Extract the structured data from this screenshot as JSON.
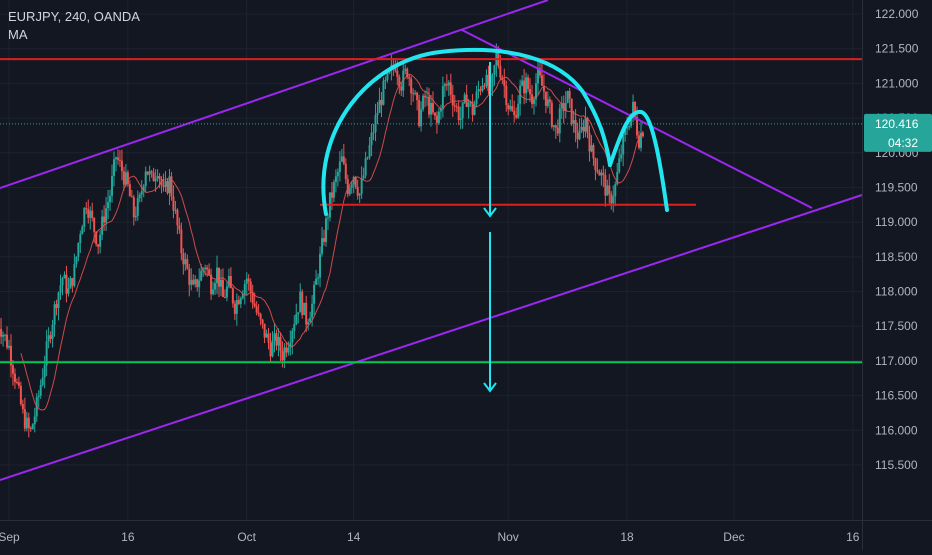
{
  "chart_data": {
    "type": "line",
    "title": "EURJPY, 240, OANDA",
    "indicator": "MA",
    "ylim": [
      115.25,
      122.25
    ],
    "y_ticks": [
      "122.000",
      "121.500",
      "121.000",
      "120.500",
      "120.000",
      "119.500",
      "119.000",
      "118.500",
      "118.000",
      "117.500",
      "117.000",
      "116.500",
      "116.000",
      "115.500"
    ],
    "x_ticks": [
      {
        "label": "Sep",
        "t": 0
      },
      {
        "label": "16",
        "t": 10
      },
      {
        "label": "Oct",
        "t": 20
      },
      {
        "label": "14",
        "t": 29
      },
      {
        "label": "Nov",
        "t": 42
      },
      {
        "label": "18",
        "t": 52
      },
      {
        "label": "Dec",
        "t": 61
      },
      {
        "label": "16",
        "t": 71
      }
    ],
    "x_range": [
      -1,
      72.5
    ],
    "price_label": "120.416",
    "countdown_label": "04:32",
    "current_price": 120.416,
    "colors": {
      "background": "#131722",
      "up": "#26a69a",
      "down": "#ef5350",
      "ma": "#ef5350",
      "channel": "#9c27f0",
      "resistance": "#e01e1e",
      "support": "#00c853",
      "pattern": "#21e6f0",
      "price_badge": "#26a69a"
    },
    "price_path": [
      [
        -1,
        117.6
      ],
      [
        0,
        117.2
      ],
      [
        0.6,
        116.7
      ],
      [
        1.2,
        116.2
      ],
      [
        1.8,
        115.95
      ],
      [
        2.4,
        116.4
      ],
      [
        3,
        117.0
      ],
      [
        3.5,
        117.45
      ],
      [
        4,
        117.9
      ],
      [
        4.5,
        118.2
      ],
      [
        5,
        118.0
      ],
      [
        5.5,
        118.3
      ],
      [
        6,
        118.9
      ],
      [
        6.5,
        119.3
      ],
      [
        7,
        119.0
      ],
      [
        7.5,
        118.7
      ],
      [
        8,
        119.1
      ],
      [
        8.5,
        119.4
      ],
      [
        9,
        119.95
      ],
      [
        9.5,
        119.75
      ],
      [
        10,
        119.5
      ],
      [
        10.5,
        119.1
      ],
      [
        11,
        119.3
      ],
      [
        11.5,
        119.8
      ],
      [
        12,
        119.6
      ],
      [
        12.5,
        119.8
      ],
      [
        13,
        119.4
      ],
      [
        13.5,
        119.6
      ],
      [
        14,
        119.1
      ],
      [
        14.5,
        118.6
      ],
      [
        15,
        118.3
      ],
      [
        15.5,
        118.0
      ],
      [
        16,
        118.2
      ],
      [
        16.5,
        118.4
      ],
      [
        17,
        118.1
      ],
      [
        17.5,
        118.3
      ],
      [
        18,
        117.9
      ],
      [
        18.5,
        118.1
      ],
      [
        19,
        117.8
      ],
      [
        19.5,
        118.0
      ],
      [
        20,
        118.2
      ],
      [
        20.5,
        117.9
      ],
      [
        21,
        117.6
      ],
      [
        21.5,
        117.4
      ],
      [
        22,
        117.2
      ],
      [
        22.5,
        117.3
      ],
      [
        23,
        117.1
      ],
      [
        23.5,
        117.3
      ],
      [
        24,
        117.6
      ],
      [
        24.5,
        117.9
      ],
      [
        25,
        117.6
      ],
      [
        25.5,
        117.8
      ],
      [
        26,
        118.3
      ],
      [
        26.5,
        118.8
      ],
      [
        27,
        119.3
      ],
      [
        27.5,
        119.6
      ],
      [
        28,
        119.9
      ],
      [
        28.5,
        119.5
      ],
      [
        29,
        119.7
      ],
      [
        29.5,
        119.4
      ],
      [
        30,
        119.8
      ],
      [
        30.5,
        120.2
      ],
      [
        31,
        120.6
      ],
      [
        31.5,
        120.9
      ],
      [
        32,
        121.1
      ],
      [
        32.5,
        121.3
      ],
      [
        33,
        121.0
      ],
      [
        33.5,
        121.2
      ],
      [
        34,
        120.9
      ],
      [
        34.5,
        120.5
      ],
      [
        35,
        120.8
      ],
      [
        35.5,
        120.6
      ],
      [
        36,
        120.4
      ],
      [
        36.5,
        120.9
      ],
      [
        37,
        121.0
      ],
      [
        37.5,
        120.7
      ],
      [
        38,
        120.5
      ],
      [
        38.5,
        120.8
      ],
      [
        39,
        120.6
      ],
      [
        39.5,
        120.9
      ],
      [
        40,
        121.1
      ],
      [
        40.5,
        120.8
      ],
      [
        41,
        121.4
      ],
      [
        41.5,
        121.1
      ],
      [
        42,
        120.7
      ],
      [
        42.5,
        120.5
      ],
      [
        43,
        120.9
      ],
      [
        43.5,
        121.0
      ],
      [
        44,
        120.8
      ],
      [
        44.5,
        121.1
      ],
      [
        45,
        120.9
      ],
      [
        45.5,
        120.6
      ],
      [
        46,
        120.3
      ],
      [
        46.5,
        120.6
      ],
      [
        47,
        120.8
      ],
      [
        47.5,
        120.4
      ],
      [
        48,
        120.2
      ],
      [
        48.5,
        120.5
      ],
      [
        49,
        120.0
      ],
      [
        49.5,
        119.8
      ],
      [
        50,
        119.6
      ],
      [
        50.5,
        119.3
      ],
      [
        51,
        119.5
      ],
      [
        51.5,
        120.0
      ],
      [
        52,
        120.4
      ],
      [
        52.5,
        120.65
      ],
      [
        53,
        120.2
      ],
      [
        53.5,
        120.416
      ]
    ]
  }
}
